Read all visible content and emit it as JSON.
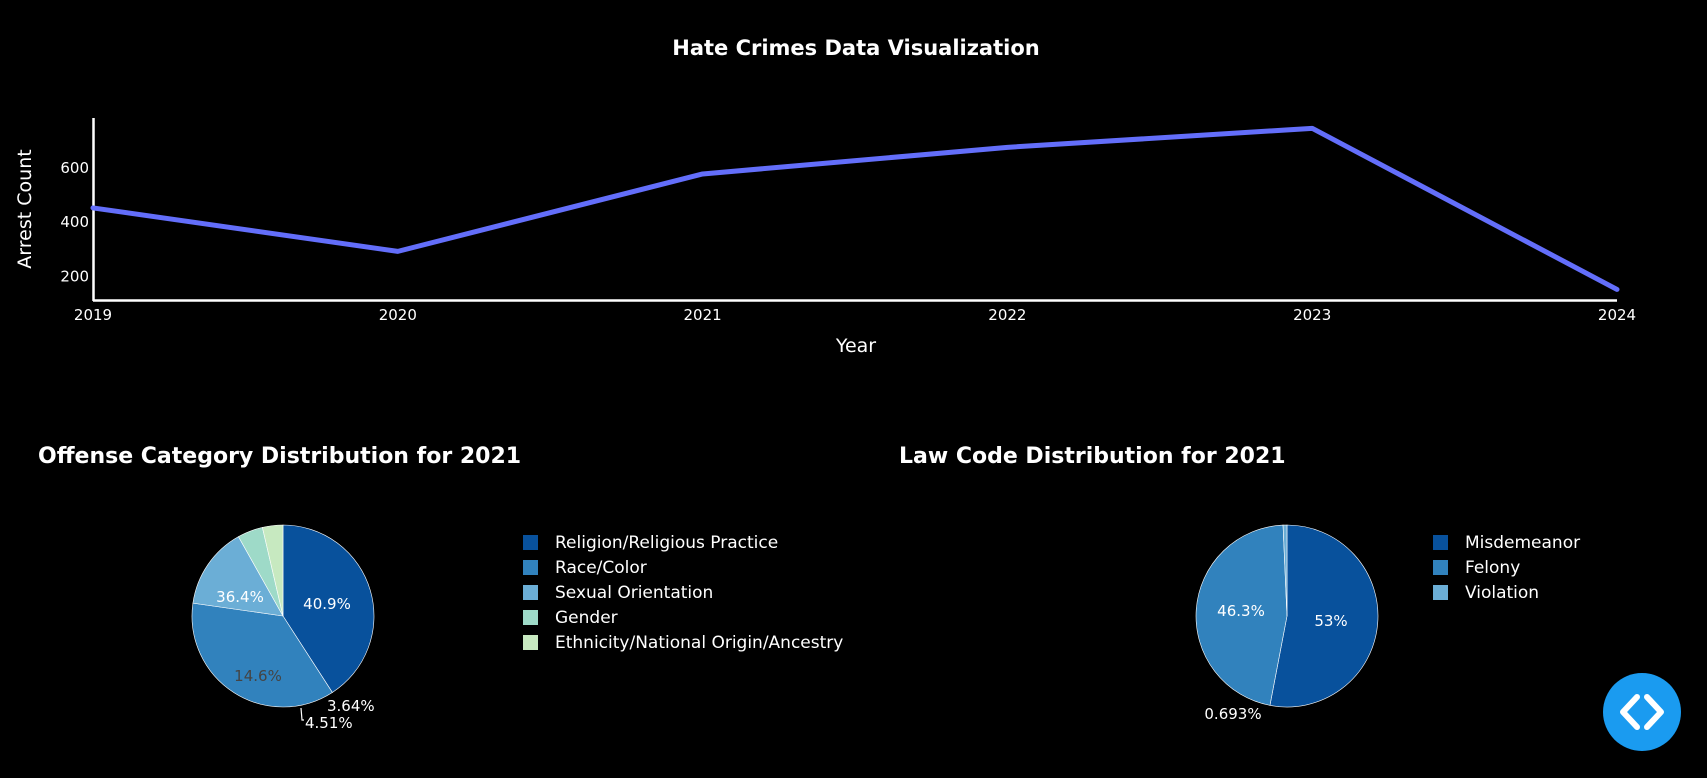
{
  "page_title": "Hate Crimes Data Visualization",
  "colors": {
    "background": "#000000",
    "line": "#636efa",
    "fab": "#1a9bf0",
    "pie_palette": [
      "#08519c",
      "#3182bd",
      "#6baed6",
      "#9ecae1",
      "#c6dbef"
    ]
  },
  "chart_data": [
    {
      "type": "line",
      "title": "Hate Crimes Data Visualization",
      "xlabel": "Year",
      "ylabel": "Arrest Count",
      "x": [
        "2019",
        "2020",
        "2021",
        "2022",
        "2023",
        "2024"
      ],
      "series": [
        {
          "values": [
            449,
            289,
            574,
            672,
            742,
            149
          ]
        }
      ],
      "ylim": [
        110,
        780
      ],
      "yticks": [
        "200",
        "400",
        "600"
      ],
      "grid": false
    },
    {
      "type": "pie",
      "title": "Offense Category Distribution for 2021",
      "labels": [
        "Religion/Religious Practice",
        "Race/Color",
        "Sexual Orientation",
        "Gender",
        "Ethnicity/National Origin/Ancestry"
      ],
      "values": [
        40.9,
        36.4,
        14.6,
        4.51,
        3.64
      ],
      "value_labels": [
        "40.9%",
        "36.4%",
        "14.6%",
        "4.51%",
        "3.64%"
      ],
      "colors": [
        "#08519c",
        "#3182bd",
        "#6baed6",
        "#9edac8",
        "#c7e9c0"
      ],
      "legend": "right"
    },
    {
      "type": "pie",
      "title": "Law Code Distribution for 2021",
      "labels": [
        "Misdemeanor",
        "Felony",
        "Violation"
      ],
      "values": [
        53,
        46.3,
        0.693
      ],
      "value_labels": [
        "53%",
        "46.3%",
        "0.693%"
      ],
      "colors": [
        "#08519c",
        "#3182bd",
        "#6baed6"
      ],
      "legend": "right"
    }
  ],
  "code_button": {
    "icon": "code-icon"
  }
}
